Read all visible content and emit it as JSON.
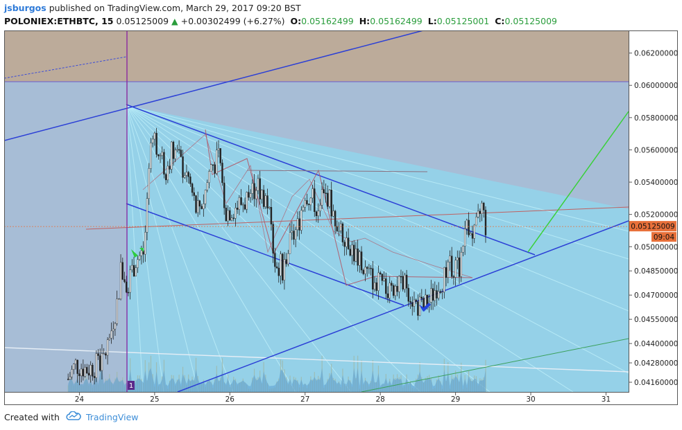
{
  "header": {
    "author": "jsburgos",
    "published": "published on TradingView.com, March 29, 2017 09:20 BST",
    "symbol": "POLONIEX:ETHBTC, 15",
    "price": "0.05125009",
    "change_icon": "up-triangle-icon",
    "change": "+0.00302499 (+6.27%)",
    "ohlc": [
      {
        "label": "O:",
        "value": "0.05162499"
      },
      {
        "label": "H:",
        "value": "0.05162499"
      },
      {
        "label": "L:",
        "value": "0.05125001"
      },
      {
        "label": "C:",
        "value": "0.05125009"
      }
    ]
  },
  "chart_data": {
    "type": "candlestick",
    "x_axis_ticks": [
      "24",
      "25",
      "26",
      "27",
      "28",
      "29",
      "30",
      "31"
    ],
    "y_axis_ticks": [
      "0.06200000",
      "0.06000000",
      "0.05800000",
      "0.05600000",
      "0.05400000",
      "0.05200000",
      "0.05000000",
      "0.04850000",
      "0.04700000",
      "0.04550000",
      "0.04400000",
      "0.04280000",
      "0.04160000"
    ],
    "last_price_label": "0.05125009",
    "countdown_label": "09:04",
    "event_marker": "1",
    "series": [
      {
        "name": "",
        "close_path": [
          [
            23.85,
            0.0418
          ],
          [
            23.95,
            0.0427
          ],
          [
            24.1,
            0.0424
          ],
          [
            24.3,
            0.0428
          ],
          [
            24.4,
            0.0442
          ],
          [
            24.45,
            0.0455
          ],
          [
            24.5,
            0.0465
          ],
          [
            24.55,
            0.0485
          ],
          [
            24.65,
            0.0478
          ],
          [
            24.75,
            0.0492
          ],
          [
            24.85,
            0.0496
          ],
          [
            24.9,
            0.0522
          ],
          [
            24.97,
            0.0575
          ],
          [
            25.05,
            0.0556
          ],
          [
            25.15,
            0.0548
          ],
          [
            25.25,
            0.0562
          ],
          [
            25.35,
            0.0551
          ],
          [
            25.45,
            0.0542
          ],
          [
            25.55,
            0.0523
          ],
          [
            25.65,
            0.0529
          ],
          [
            25.75,
            0.0551
          ],
          [
            25.85,
            0.0553
          ],
          [
            25.95,
            0.0522
          ],
          [
            26.05,
            0.0524
          ],
          [
            26.2,
            0.0528
          ],
          [
            26.35,
            0.0538
          ],
          [
            26.5,
            0.0528
          ],
          [
            26.6,
            0.0492
          ],
          [
            26.7,
            0.0487
          ],
          [
            26.8,
            0.0502
          ],
          [
            26.9,
            0.0512
          ],
          [
            27.0,
            0.0534
          ],
          [
            27.15,
            0.0526
          ],
          [
            27.3,
            0.0532
          ],
          [
            27.45,
            0.0511
          ],
          [
            27.55,
            0.0507
          ],
          [
            27.65,
            0.0496
          ],
          [
            27.75,
            0.0488
          ],
          [
            27.85,
            0.0482
          ],
          [
            27.95,
            0.0478
          ],
          [
            28.05,
            0.0473
          ],
          [
            28.15,
            0.0478
          ],
          [
            28.25,
            0.0475
          ],
          [
            28.35,
            0.0477
          ],
          [
            28.45,
            0.0465
          ],
          [
            28.55,
            0.0462
          ],
          [
            28.65,
            0.0466
          ],
          [
            28.75,
            0.0476
          ],
          [
            28.85,
            0.0481
          ],
          [
            28.95,
            0.0489
          ],
          [
            29.05,
            0.0488
          ],
          [
            29.15,
            0.0517
          ],
          [
            29.25,
            0.0506
          ],
          [
            29.35,
            0.0525
          ],
          [
            29.4,
            0.0513
          ]
        ]
      }
    ],
    "xlim": [
      23.0,
      31.3
    ],
    "ylim": [
      0.041,
      0.0634
    ]
  },
  "colors": {
    "bullish_arrow": "#2ecc40",
    "bearish_arrow": "#2244dd",
    "channel": "#2b3fd6",
    "trend_up": "#3ad03a",
    "price_badge": "#e8703a",
    "fib_zone": "#8fd8ee",
    "top_zone": "#bba694"
  },
  "footer": {
    "created_with": "Created with",
    "brand": "TradingView",
    "logo_icon": "tradingview-cloud-icon"
  }
}
